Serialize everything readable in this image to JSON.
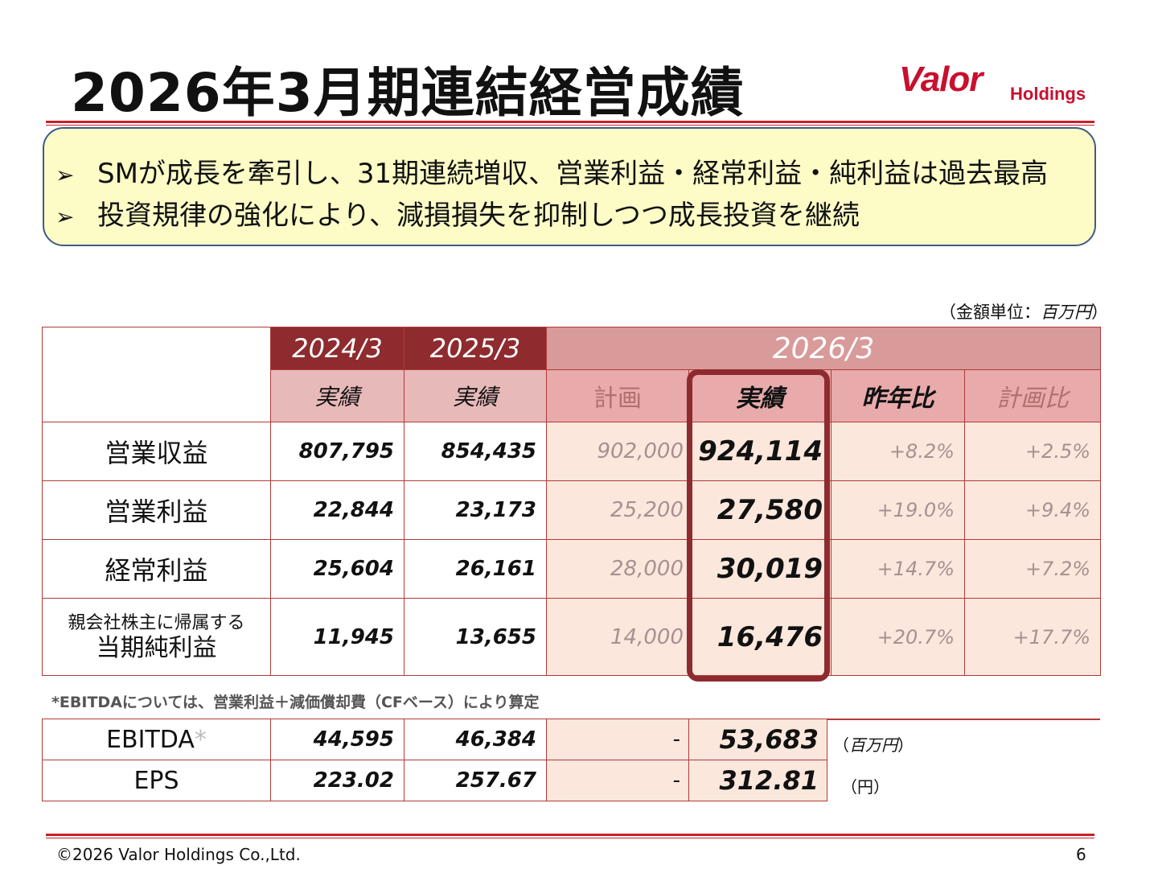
{
  "title": "2026年3月期連結経営成績",
  "logo": {
    "brand": "Valor",
    "suffix": "Holdings"
  },
  "bullets": [
    {
      "mark": "➢",
      "text": "SMが成長を牽引し、31期連続増収、営業利益・経常利益・純利益は過去最高"
    },
    {
      "mark": "➢",
      "text": "投資規律の強化により、減損損失を抑制しつつ成長投資を継続"
    }
  ],
  "unit_note": {
    "prefix": "（金額単位：",
    "unit": "百万円",
    "suffix": "）"
  },
  "table": {
    "years": [
      "2024/3",
      "2025/3",
      "2026/3"
    ],
    "subheaders": {
      "old1": "実績",
      "old2": "実績",
      "plan": "計画",
      "actual": "実績",
      "yoy": "昨年比",
      "vs_plan": "計画比"
    },
    "rows": [
      {
        "label": "営業収益",
        "y2024": "807,795",
        "y2025": "854,435",
        "plan": "902,000",
        "actual": "924,114",
        "yoy": "+8.2%",
        "vs_plan": "+2.5%"
      },
      {
        "label": "営業利益",
        "y2024": "22,844",
        "y2025": "23,173",
        "plan": "25,200",
        "actual": "27,580",
        "yoy": "+19.0%",
        "vs_plan": "+9.4%"
      },
      {
        "label": "経常利益",
        "y2024": "25,604",
        "y2025": "26,161",
        "plan": "28,000",
        "actual": "30,019",
        "yoy": "+14.7%",
        "vs_plan": "+7.2%"
      },
      {
        "label_small": "親会社株主に帰属する",
        "label": "当期純利益",
        "y2024": "11,945",
        "y2025": "13,655",
        "plan": "14,000",
        "actual": "16,476",
        "yoy": "+20.7%",
        "vs_plan": "+17.7%"
      }
    ]
  },
  "ebitda_note": "*EBITDAについては、営業利益＋減価償却費（CFベース）により算定",
  "sub_table": [
    {
      "label": "EBITDA",
      "mark": "*",
      "y2024": "44,595",
      "y2025": "46,384",
      "plan": "-",
      "actual": "53,683",
      "unit_prefix": "（",
      "unit": "百万円",
      "unit_suffix": "）"
    },
    {
      "label": "EPS",
      "y2024": "223.02",
      "y2025": "257.67",
      "plan": "-",
      "actual": "312.81",
      "unit": "（円）"
    }
  ],
  "footer": {
    "copyright": "©2026 Valor Holdings Co.,Ltd.",
    "page": "6"
  },
  "colors": {
    "brand_red": "#c8102e",
    "header_dark": "#8e2b2e",
    "header_light": "#d99a9a",
    "highlight_bg": "#fbe7dc",
    "bullet_bg": "#fdfbc6"
  }
}
